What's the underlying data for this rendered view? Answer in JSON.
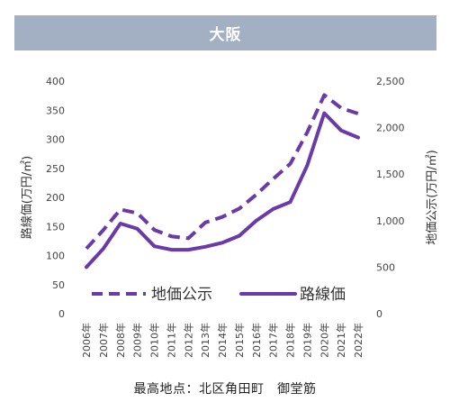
{
  "header": {
    "title": "大阪"
  },
  "caption": "最高地点：北区角田町　御堂筋",
  "colors": {
    "series": "#6a3aa8",
    "title_bg": "#a3afc3"
  },
  "chart_data": {
    "type": "line",
    "categories": [
      "2006年",
      "2007年",
      "2008年",
      "2009年",
      "2010年",
      "2011年",
      "2012年",
      "2013年",
      "2014年",
      "2015年",
      "2016年",
      "2017年",
      "2018年",
      "2019年",
      "2020年",
      "2021年",
      "2022年"
    ],
    "series": [
      {
        "name": "地価公示",
        "axis": "right",
        "style": "dashed",
        "values": [
          700,
          900,
          1120,
          1080,
          900,
          830,
          810,
          980,
          1040,
          1130,
          1280,
          1450,
          1610,
          1950,
          2350,
          2210,
          2150
        ]
      },
      {
        "name": "路線価",
        "axis": "left",
        "style": "solid",
        "values": [
          80,
          112,
          155,
          146,
          116,
          110,
          110,
          115,
          122,
          134,
          160,
          180,
          192,
          255,
          345,
          315,
          303
        ]
      }
    ],
    "ylabel": "路線価(万円/㎡)",
    "y2label": "地価公示(万円/㎡)",
    "ylim": [
      0,
      400
    ],
    "y2lim": [
      0,
      2500
    ],
    "yticks": [
      0,
      50,
      100,
      150,
      200,
      250,
      300,
      350,
      400
    ],
    "y2ticks": [
      "0",
      "500",
      "1,000",
      "1,500",
      "2,000",
      "2,500"
    ],
    "grid": false,
    "legend": "bottom-center"
  }
}
